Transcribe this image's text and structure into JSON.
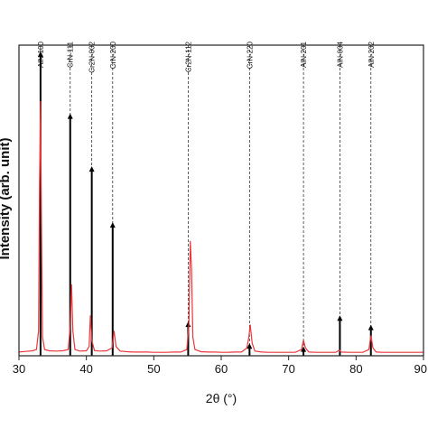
{
  "chart_data": {
    "type": "line",
    "xlabel": "2θ (°)",
    "ylabel": "Intensity (arb. unit)",
    "xlim": [
      30,
      90
    ],
    "ylim": [
      0,
      1
    ],
    "xticks": [
      30,
      40,
      50,
      60,
      70,
      80,
      90
    ],
    "grid": false,
    "series": [
      {
        "color": "#e8383d",
        "points": [
          [
            30.0,
            0.012
          ],
          [
            31.0,
            0.014
          ],
          [
            32.0,
            0.016
          ],
          [
            32.6,
            0.02
          ],
          [
            32.9,
            0.08
          ],
          [
            33.05,
            0.55
          ],
          [
            33.2,
            0.82
          ],
          [
            33.35,
            0.4
          ],
          [
            33.5,
            0.06
          ],
          [
            33.8,
            0.02
          ],
          [
            34.5,
            0.016
          ],
          [
            35.5,
            0.015
          ],
          [
            36.5,
            0.016
          ],
          [
            37.3,
            0.02
          ],
          [
            37.6,
            0.09
          ],
          [
            37.8,
            0.23
          ],
          [
            38.0,
            0.08
          ],
          [
            38.3,
            0.02
          ],
          [
            39.0,
            0.015
          ],
          [
            40.0,
            0.016
          ],
          [
            40.4,
            0.03
          ],
          [
            40.6,
            0.13
          ],
          [
            40.8,
            0.05
          ],
          [
            41.2,
            0.017
          ],
          [
            42.0,
            0.015
          ],
          [
            43.0,
            0.016
          ],
          [
            43.8,
            0.025
          ],
          [
            44.1,
            0.08
          ],
          [
            44.4,
            0.03
          ],
          [
            45.0,
            0.015
          ],
          [
            46.0,
            0.013
          ],
          [
            47.0,
            0.012
          ],
          [
            48.0,
            0.012
          ],
          [
            49.0,
            0.012
          ],
          [
            50.0,
            0.011
          ],
          [
            51.0,
            0.011
          ],
          [
            52.0,
            0.011
          ],
          [
            53.0,
            0.012
          ],
          [
            54.0,
            0.012
          ],
          [
            54.9,
            0.02
          ],
          [
            55.2,
            0.1
          ],
          [
            55.4,
            0.37
          ],
          [
            55.6,
            0.28
          ],
          [
            55.8,
            0.06
          ],
          [
            56.1,
            0.02
          ],
          [
            57.0,
            0.013
          ],
          [
            58.0,
            0.012
          ],
          [
            59.0,
            0.012
          ],
          [
            60.0,
            0.011
          ],
          [
            61.0,
            0.011
          ],
          [
            62.0,
            0.012
          ],
          [
            63.0,
            0.012
          ],
          [
            63.8,
            0.025
          ],
          [
            64.1,
            0.06
          ],
          [
            64.3,
            0.1
          ],
          [
            64.6,
            0.04
          ],
          [
            65.0,
            0.015
          ],
          [
            66.0,
            0.012
          ],
          [
            67.0,
            0.011
          ],
          [
            68.0,
            0.011
          ],
          [
            69.0,
            0.011
          ],
          [
            70.0,
            0.011
          ],
          [
            71.0,
            0.011
          ],
          [
            71.9,
            0.02
          ],
          [
            72.2,
            0.05
          ],
          [
            72.5,
            0.025
          ],
          [
            73.0,
            0.012
          ],
          [
            74.0,
            0.011
          ],
          [
            75.0,
            0.011
          ],
          [
            76.0,
            0.011
          ],
          [
            77.0,
            0.011
          ],
          [
            77.5,
            0.018
          ],
          [
            77.8,
            0.012
          ],
          [
            79.0,
            0.011
          ],
          [
            80.0,
            0.011
          ],
          [
            81.0,
            0.011
          ],
          [
            81.9,
            0.02
          ],
          [
            82.2,
            0.065
          ],
          [
            82.5,
            0.025
          ],
          [
            83.0,
            0.012
          ],
          [
            84.0,
            0.011
          ],
          [
            85.0,
            0.011
          ],
          [
            86.0,
            0.011
          ],
          [
            87.0,
            0.011
          ],
          [
            88.0,
            0.011
          ],
          [
            89.0,
            0.011
          ],
          [
            90.0,
            0.011
          ]
        ]
      }
    ],
    "reference_peaks": [
      {
        "label": "AlN-100",
        "x": 33.2,
        "height": 0.98,
        "line": "solid"
      },
      {
        "label": "CrN-111",
        "x": 37.6,
        "height": 0.78,
        "line": "dashed"
      },
      {
        "label": "Cr2N-002",
        "x": 40.8,
        "height": 0.61,
        "line": "dashed"
      },
      {
        "label": "CrN-200",
        "x": 43.9,
        "height": 0.43,
        "line": "dashed"
      },
      {
        "label": "Cr2N-112",
        "x": 55.1,
        "height": 0.11,
        "line": "dashed"
      },
      {
        "label": "CrN-220",
        "x": 64.2,
        "height": 0.04,
        "line": "dashed"
      },
      {
        "label": "AlN-201",
        "x": 72.2,
        "height": 0.03,
        "line": "dashed"
      },
      {
        "label": "AlN-004",
        "x": 77.6,
        "height": 0.13,
        "line": "dashed"
      },
      {
        "label": "AlN-202",
        "x": 82.2,
        "height": 0.1,
        "line": "dashed"
      }
    ]
  }
}
